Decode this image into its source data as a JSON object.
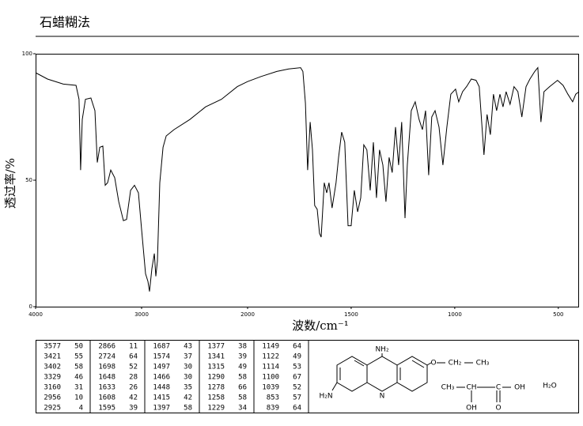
{
  "chart_data": {
    "type": "line",
    "title": "石蜡糊法",
    "x_label": "波数/cm⁻¹",
    "y_label": "透过率/%",
    "xlim": [
      4000,
      400
    ],
    "ylim": [
      0,
      100
    ],
    "x_scale_change": 2000,
    "xticks": [
      4000,
      3000,
      2000,
      1500,
      1000,
      500
    ],
    "yticks": [
      0,
      50,
      100
    ],
    "color": "#000000",
    "x": [
      4000,
      3888,
      3739,
      3619,
      3590,
      3575,
      3560,
      3530,
      3478,
      3440,
      3418,
      3395,
      3366,
      3343,
      3321,
      3291,
      3254,
      3216,
      3172,
      3142,
      3104,
      3067,
      3030,
      3000,
      2963,
      2940,
      2925,
      2903,
      2880,
      2866,
      2851,
      2828,
      2798,
      2768,
      2694,
      2545,
      2396,
      2246,
      2097,
      2000,
      1935,
      1859,
      1802,
      1744,
      1733,
      1721,
      1710,
      1698,
      1687,
      1676,
      1664,
      1653,
      1645,
      1630,
      1618,
      1607,
      1592,
      1573,
      1561,
      1546,
      1531,
      1515,
      1500,
      1485,
      1469,
      1454,
      1439,
      1424,
      1408,
      1393,
      1378,
      1363,
      1347,
      1332,
      1317,
      1302,
      1286,
      1271,
      1256,
      1240,
      1229,
      1210,
      1191,
      1172,
      1156,
      1141,
      1126,
      1111,
      1095,
      1076,
      1057,
      1038,
      1019,
      996,
      981,
      962,
      943,
      920,
      897,
      882,
      870,
      859,
      844,
      828,
      813,
      798,
      782,
      767,
      752,
      733,
      714,
      695,
      676,
      656,
      637,
      614,
      599,
      584,
      569,
      542,
      504,
      477,
      454,
      431,
      416,
      400
    ],
    "values": [
      92.5,
      90,
      88,
      87.5,
      82,
      54,
      74,
      82,
      82.5,
      77.5,
      57,
      63,
      63.5,
      48,
      49,
      54,
      51,
      41.5,
      34,
      34.5,
      46,
      48,
      45,
      30.5,
      13,
      10,
      6,
      15,
      21,
      12,
      18,
      49,
      63,
      67.5,
      70,
      74,
      79,
      82,
      87,
      89,
      91,
      93,
      94,
      94.5,
      93,
      80.5,
      54,
      73,
      62,
      40,
      38.5,
      29,
      27.5,
      49,
      45,
      49,
      39,
      49,
      59,
      69,
      65,
      32,
      32,
      46,
      37.5,
      43,
      64,
      62,
      46,
      65,
      43,
      62,
      56,
      41.5,
      59,
      53,
      71,
      56,
      73,
      35,
      56,
      77.5,
      81,
      74,
      70,
      77.5,
      52,
      75,
      77.5,
      71,
      56,
      71,
      84,
      86,
      81,
      85,
      87,
      90,
      89.5,
      87,
      73,
      60,
      76,
      68,
      84,
      77.5,
      84,
      79,
      85,
      80,
      87,
      85,
      75,
      87,
      90,
      93,
      94.5,
      73,
      85,
      87,
      89.5,
      87.5,
      84,
      81,
      84,
      85
    ]
  },
  "peak_table": [
    [
      "3577",
      "50"
    ],
    [
      "3421",
      "55"
    ],
    [
      "3402",
      "58"
    ],
    [
      "3329",
      "46"
    ],
    [
      "3160",
      "31"
    ],
    [
      "2956",
      "10"
    ],
    [
      "2925",
      "4"
    ],
    [
      "2866",
      "11"
    ],
    [
      "2724",
      "64"
    ],
    [
      "1698",
      "52"
    ],
    [
      "1648",
      "28"
    ],
    [
      "1633",
      "26"
    ],
    [
      "1608",
      "42"
    ],
    [
      "1595",
      "39"
    ],
    [
      "1687",
      "43"
    ],
    [
      "1574",
      "37"
    ],
    [
      "1497",
      "30"
    ],
    [
      "1466",
      "30"
    ],
    [
      "1448",
      "35"
    ],
    [
      "1415",
      "42"
    ],
    [
      "1397",
      "58"
    ],
    [
      "1377",
      "38"
    ],
    [
      "1341",
      "39"
    ],
    [
      "1315",
      "49"
    ],
    [
      "1290",
      "58"
    ],
    [
      "1278",
      "66"
    ],
    [
      "1258",
      "58"
    ],
    [
      "1229",
      "34"
    ],
    [
      "1149",
      "64"
    ],
    [
      "1122",
      "49"
    ],
    [
      "1114",
      "53"
    ],
    [
      "1100",
      "67"
    ],
    [
      "1039",
      "52"
    ],
    [
      "853",
      "57"
    ],
    [
      "839",
      "64"
    ]
  ],
  "structure": {
    "labels": [
      "NH₂",
      "O",
      "CH₂",
      "CH₃",
      "H₂N",
      "N",
      "CH₃",
      "CH",
      "C",
      "OH",
      "OH",
      "O",
      "H₂O"
    ]
  }
}
